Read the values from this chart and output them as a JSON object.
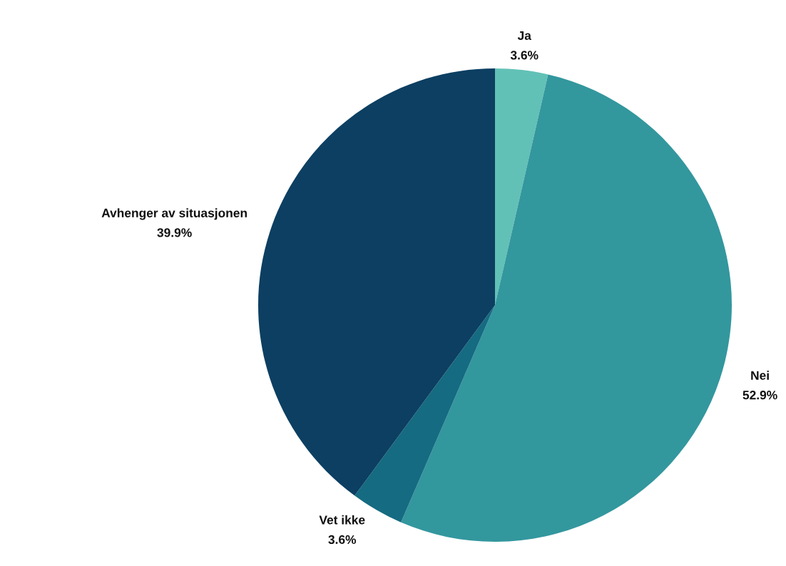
{
  "chart_data": {
    "type": "pie",
    "categories": [
      "Ja",
      "Nei",
      "Vet ikke",
      "Avhenger av situasjonen"
    ],
    "values": [
      3.6,
      52.9,
      3.6,
      39.9
    ],
    "colors": [
      "#62c1b6",
      "#33979e",
      "#156b81",
      "#0c3f62"
    ],
    "value_labels": [
      "3.6%",
      "52.9%",
      "3.6%",
      "39.9%"
    ]
  }
}
